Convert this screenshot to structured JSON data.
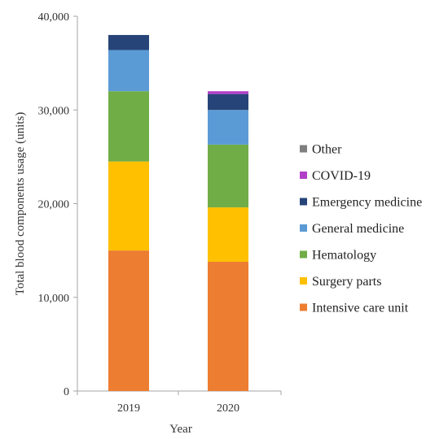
{
  "chart_data": {
    "type": "bar",
    "stacked": true,
    "categories": [
      "2019",
      "2020"
    ],
    "series": [
      {
        "name": "Intensive care unit",
        "color": "#ED7D31",
        "values": [
          15000,
          13800
        ]
      },
      {
        "name": "Surgery parts",
        "color": "#FFC000",
        "values": [
          9500,
          5800
        ]
      },
      {
        "name": "Hematology",
        "color": "#70AD47",
        "values": [
          7500,
          6700
        ]
      },
      {
        "name": "General medicine",
        "color": "#5B9BD5",
        "values": [
          4400,
          3700
        ]
      },
      {
        "name": "Emergency medicine",
        "color": "#264478",
        "values": [
          1600,
          1700
        ]
      },
      {
        "name": "COVID-19",
        "color": "#B23FC8",
        "values": [
          0,
          300
        ]
      },
      {
        "name": "Other",
        "color": "#7F7F7F",
        "values": [
          0,
          0
        ]
      }
    ],
    "xlabel": "Year",
    "ylabel": "Total blood components usage (units)",
    "ylim": [
      0,
      40000
    ],
    "yticks": [
      0,
      10000,
      20000,
      30000,
      40000
    ],
    "ytick_labels": [
      "0",
      "10,000",
      "20,000",
      "30,000",
      "40,000"
    ],
    "grid": false,
    "legend_position": "right",
    "legend_order": [
      "Other",
      "COVID-19",
      "Emergency medicine",
      "General medicine",
      "Hematology",
      "Surgery parts",
      "Intensive care unit"
    ]
  }
}
